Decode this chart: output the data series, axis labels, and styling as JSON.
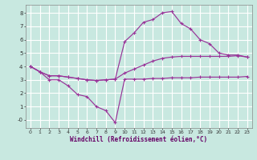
{
  "xlabel": "Windchill (Refroidissement éolien,°C)",
  "background_color": "#c8e8e0",
  "grid_color": "#ffffff",
  "line_color": "#993399",
  "xlim": [
    -0.5,
    23.5
  ],
  "ylim": [
    -0.6,
    8.6
  ],
  "xticks": [
    0,
    1,
    2,
    3,
    4,
    5,
    6,
    7,
    8,
    9,
    10,
    11,
    12,
    13,
    14,
    15,
    16,
    17,
    18,
    19,
    20,
    21,
    22,
    23
  ],
  "yticks": [
    0,
    1,
    2,
    3,
    4,
    5,
    6,
    7,
    8
  ],
  "line1_x": [
    0,
    1,
    2,
    3,
    4,
    5,
    6,
    7,
    8,
    9,
    10,
    11,
    12,
    13,
    14,
    15,
    16,
    17,
    18,
    19,
    20,
    21,
    22,
    23
  ],
  "line1_y": [
    4.0,
    3.6,
    3.0,
    3.0,
    2.55,
    1.9,
    1.75,
    1.0,
    0.7,
    -0.2,
    3.05,
    3.05,
    3.05,
    3.1,
    3.1,
    3.15,
    3.15,
    3.15,
    3.2,
    3.2,
    3.2,
    3.2,
    3.2,
    3.25
  ],
  "line2_x": [
    0,
    1,
    2,
    3,
    4,
    5,
    6,
    7,
    8,
    9,
    10,
    11,
    12,
    13,
    14,
    15,
    16,
    17,
    18,
    19,
    20,
    21,
    22,
    23
  ],
  "line2_y": [
    4.0,
    3.6,
    3.3,
    3.3,
    3.2,
    3.1,
    3.0,
    2.95,
    3.0,
    3.05,
    3.5,
    3.8,
    4.1,
    4.4,
    4.6,
    4.7,
    4.75,
    4.75,
    4.75,
    4.75,
    4.75,
    4.75,
    4.8,
    4.7
  ],
  "line3_x": [
    0,
    1,
    2,
    3,
    4,
    5,
    6,
    7,
    8,
    9,
    10,
    11,
    12,
    13,
    14,
    15,
    16,
    17,
    18,
    19,
    20,
    21,
    22,
    23
  ],
  "line3_y": [
    4.0,
    3.6,
    3.3,
    3.3,
    3.2,
    3.1,
    3.0,
    2.95,
    3.0,
    3.05,
    5.85,
    6.5,
    7.3,
    7.5,
    8.0,
    8.1,
    7.2,
    6.8,
    6.0,
    5.7,
    5.0,
    4.85,
    4.85,
    4.7
  ]
}
